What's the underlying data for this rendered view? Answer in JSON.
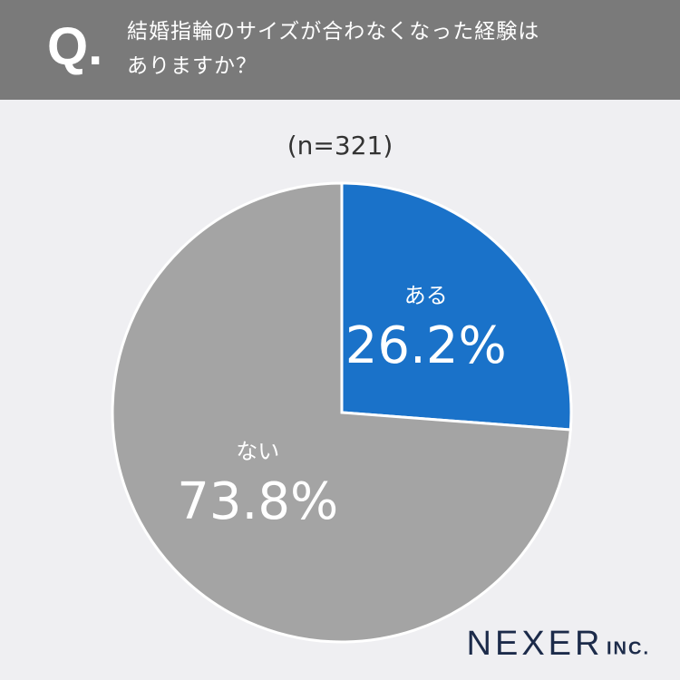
{
  "chart_data": {
    "type": "pie",
    "question_mark": "Q.",
    "title": "結婚指輪のサイズが合わなくなった経験は\nありますか？",
    "subtitle": "(n=321)",
    "categories": [
      "ある",
      "ない"
    ],
    "values": [
      26.2,
      73.8
    ],
    "value_labels": [
      "26.2%",
      "73.8%"
    ],
    "colors": [
      "#1a72c9",
      "#a4a4a4"
    ],
    "logo": "NEXER",
    "logo_suffix": "INC."
  }
}
